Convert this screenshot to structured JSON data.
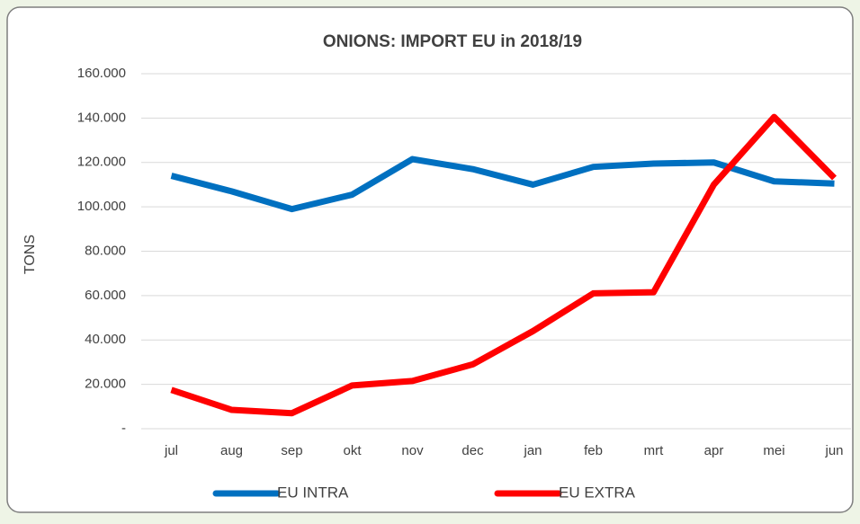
{
  "chart_data": {
    "type": "line",
    "title": "ONIONS: IMPORT EU in 2018/19",
    "y_label": "TONS",
    "categories": [
      "jul",
      "aug",
      "sep",
      "okt",
      "nov",
      "dec",
      "jan",
      "feb",
      "mrt",
      "apr",
      "mei",
      "jun"
    ],
    "series": [
      {
        "name": "EU INTRA",
        "color": "#0070c0",
        "values": [
          114000,
          107000,
          99000,
          105500,
          121500,
          117000,
          110000,
          118000,
          119500,
          120000,
          111500,
          110500
        ]
      },
      {
        "name": "EU EXTRA",
        "color": "#ff0000",
        "values": [
          17500,
          8500,
          7000,
          19500,
          21500,
          29000,
          44000,
          61000,
          61500,
          110000,
          140500,
          113000
        ]
      }
    ],
    "ylim": [
      0,
      160000
    ],
    "yticks": [
      {
        "value": 0,
        "label": "-"
      },
      {
        "value": 20000,
        "label": "20.000"
      },
      {
        "value": 40000,
        "label": "40.000"
      },
      {
        "value": 60000,
        "label": "60.000"
      },
      {
        "value": 80000,
        "label": "80.000"
      },
      {
        "value": 100000,
        "label": "100.000"
      },
      {
        "value": 120000,
        "label": "120.000"
      },
      {
        "value": 140000,
        "label": "140.000"
      },
      {
        "value": 160000,
        "label": "160.000"
      }
    ],
    "grid": true,
    "legend": "bottom"
  }
}
